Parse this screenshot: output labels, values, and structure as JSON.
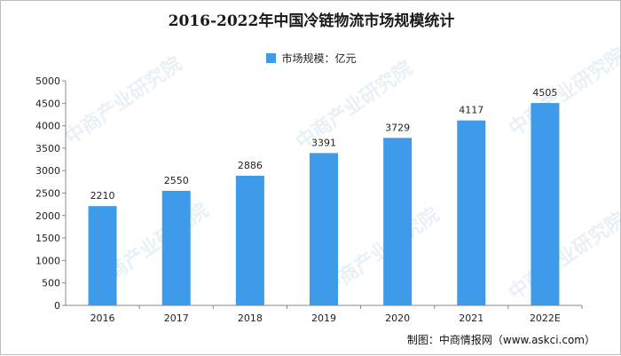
{
  "chart_data": {
    "type": "bar",
    "title": "2016-2022年中国冷链物流市场规模统计",
    "categories": [
      "2016",
      "2017",
      "2018",
      "2019",
      "2020",
      "2021",
      "2022E"
    ],
    "series": [
      {
        "name": "市场规模：亿元",
        "values": [
          2210,
          2550,
          2886,
          3391,
          3729,
          4117,
          4505
        ]
      }
    ],
    "ylim": [
      0,
      5000
    ],
    "yticks": [
      0,
      500,
      1000,
      1500,
      2000,
      2500,
      3000,
      3500,
      4000,
      4500,
      5000
    ],
    "legend": "top-center",
    "grid": false,
    "colors": {
      "bar": "#3d9be9"
    }
  },
  "source": "制图：中商情报网（www.askci.com）",
  "watermark": "中商产业研究院"
}
